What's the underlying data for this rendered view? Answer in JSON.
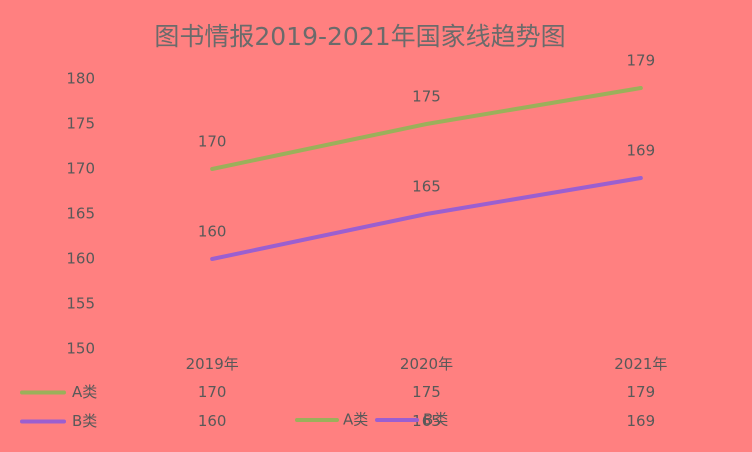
{
  "chart_data": {
    "type": "line",
    "title": "图书情报2019-2021年国家线趋势图",
    "categories": [
      "2019年",
      "2020年",
      "2021年"
    ],
    "series": [
      {
        "name": "A类",
        "color": "#9bb05a",
        "values": [
          170,
          175,
          179
        ]
      },
      {
        "name": "B类",
        "color": "#9b5fd0",
        "values": [
          160,
          165,
          169
        ]
      }
    ],
    "ylim": [
      150,
      180
    ],
    "yticks": [
      150,
      155,
      160,
      165,
      170,
      175,
      180
    ],
    "grid": true,
    "data_table": true,
    "legend": "bottom"
  }
}
